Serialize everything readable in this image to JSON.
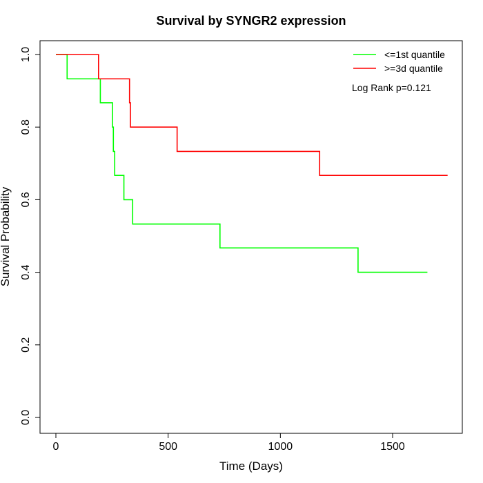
{
  "chart_data": {
    "type": "line",
    "step": true,
    "title": "Survival by SYNGR2 expression",
    "xlabel": "Time (Days)",
    "ylabel": "Survival Probability",
    "xlim": [
      0,
      1750
    ],
    "ylim": [
      0,
      1.0
    ],
    "xticks": [
      0,
      500,
      1000,
      1500
    ],
    "xtick_labels": [
      "0",
      "500",
      "1000",
      "1500"
    ],
    "yticks": [
      0,
      0.2,
      0.4,
      0.6,
      0.8,
      1.0
    ],
    "ytick_labels": [
      "0.0",
      "0.2",
      "0.4",
      "0.6",
      "0.8",
      "1.0"
    ],
    "grid": false,
    "legend_position": "top-right",
    "annotation": "Log Rank p=0.121",
    "series": [
      {
        "name": "<=1st quantile",
        "color": "#00ff00",
        "x": [
          0,
          50,
          198,
          252,
          256,
          262,
          303,
          342,
          731,
          1346,
          1655
        ],
        "y": [
          1.0,
          0.933,
          0.867,
          0.8,
          0.733,
          0.667,
          0.6,
          0.533,
          0.467,
          0.4,
          0.4
        ]
      },
      {
        "name": ">=3d quantile",
        "color": "#ff0000",
        "x": [
          0,
          190,
          328,
          332,
          540,
          1175,
          1745
        ],
        "y": [
          1.0,
          0.933,
          0.867,
          0.8,
          0.733,
          0.667,
          0.667
        ]
      }
    ]
  }
}
